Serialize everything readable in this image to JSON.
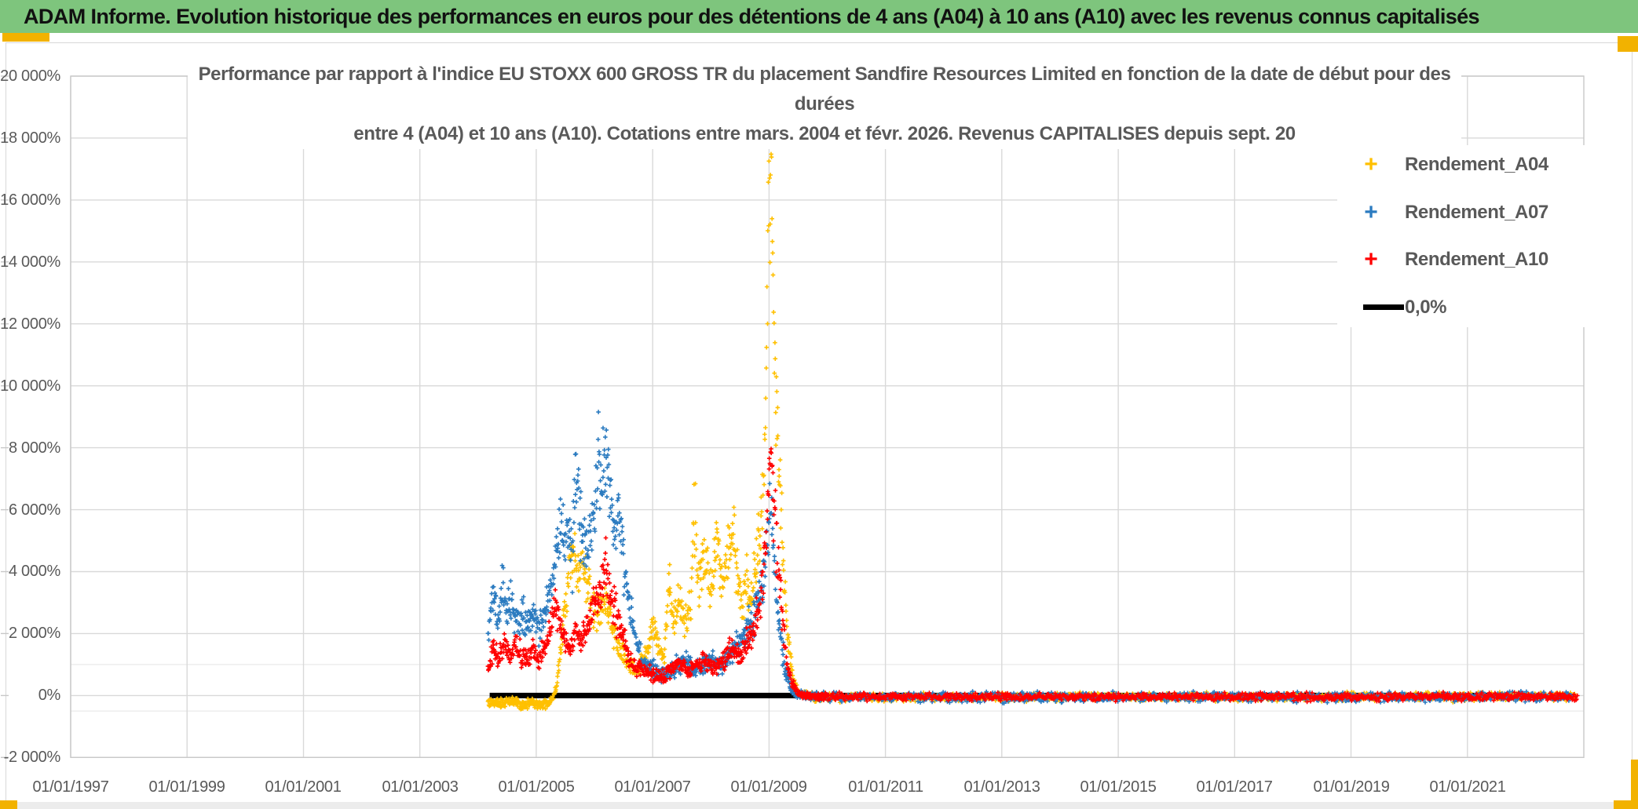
{
  "header": {
    "title": "ADAM Informe. Evolution historique des performances en euros pour des détentions de 4 ans (A04) à 10 ans (A10) avec les revenus connus capitalisés"
  },
  "colors": {
    "header_green": "#7EC57D",
    "accent_orange": "#F2B200",
    "grid": "#D9D9D9",
    "grid_faint": "#E4E4E4",
    "plot_border": "#C9C9C9",
    "axis_text": "#595959",
    "series_a04": "#FFC000",
    "series_a07": "#2B7BC0",
    "series_a10": "#FF0000",
    "zero_line": "#000000"
  },
  "chart_data": {
    "type": "scatter",
    "title_lines": [
      "Performance par rapport à l'indice EU STOXX 600 GROSS TR  du placement Sandfire Resources Limited en fonction de la date de début pour des",
      "durées",
      "entre 4 (A04) et 10 ans (A10). Cotations entre mars. 2004 et févr. 2026. Revenus CAPITALISES depuis sept. 20"
    ],
    "x_axis": {
      "range_years": [
        1997,
        2023
      ],
      "ticks": [
        {
          "label": "01/01/1997",
          "year": 1997
        },
        {
          "label": "01/01/1999",
          "year": 1999
        },
        {
          "label": "01/01/2001",
          "year": 2001
        },
        {
          "label": "01/01/2003",
          "year": 2003
        },
        {
          "label": "01/01/2005",
          "year": 2005
        },
        {
          "label": "01/01/2007",
          "year": 2007
        },
        {
          "label": "01/01/2009",
          "year": 2009
        },
        {
          "label": "01/01/2011",
          "year": 2011
        },
        {
          "label": "01/01/2013",
          "year": 2013
        },
        {
          "label": "01/01/2015",
          "year": 2015
        },
        {
          "label": "01/01/2017",
          "year": 2017
        },
        {
          "label": "01/01/2019",
          "year": 2019
        },
        {
          "label": "01/01/2021",
          "year": 2021
        }
      ]
    },
    "y_axis": {
      "range": [
        -2000,
        20000
      ],
      "ticks": [
        {
          "label": "20 000%",
          "value": 20000
        },
        {
          "label": "18 000%",
          "value": 18000
        },
        {
          "label": "16 000%",
          "value": 16000
        },
        {
          "label": "14 000%",
          "value": 14000
        },
        {
          "label": "12 000%",
          "value": 12000
        },
        {
          "label": "10 000%",
          "value": 10000
        },
        {
          "label": "8 000%",
          "value": 8000
        },
        {
          "label": "6 000%",
          "value": 6000
        },
        {
          "label": "4 000%",
          "value": 4000
        },
        {
          "label": "2 000%",
          "value": 2000
        },
        {
          "label": "0%",
          "value": 0
        },
        {
          "label": "-2 000%",
          "value": -2000
        }
      ],
      "extra_gridline_values": [
        1000,
        -500
      ]
    },
    "legend": [
      {
        "label": "Rendement_A04",
        "color": "#FFC000",
        "marker": "plus"
      },
      {
        "label": "Rendement_A07",
        "color": "#2B7BC0",
        "marker": "plus"
      },
      {
        "label": "Rendement_A10",
        "color": "#FF0000",
        "marker": "plus"
      },
      {
        "label": "0,0%",
        "color": "#000000",
        "marker": "line"
      }
    ],
    "zero_line": {
      "label": "0,0%",
      "value": 0,
      "start_year": 2004.2,
      "end_year": 2022.35,
      "color": "#000000"
    },
    "series": [
      {
        "name": "Rendement_A04",
        "color": "#FFC000",
        "seed": 101,
        "noise_base": 60,
        "noise_factor": 0.085,
        "profile": [
          [
            2004.17,
            -180
          ],
          [
            2004.4,
            -260
          ],
          [
            2004.6,
            -180
          ],
          [
            2004.75,
            -300
          ],
          [
            2004.95,
            -220
          ],
          [
            2005.15,
            -280
          ],
          [
            2005.28,
            -150
          ],
          [
            2005.35,
            300
          ],
          [
            2005.42,
            1500
          ],
          [
            2005.5,
            2800
          ],
          [
            2005.58,
            4200
          ],
          [
            2005.63,
            4800
          ],
          [
            2005.7,
            3900
          ],
          [
            2005.78,
            4500
          ],
          [
            2005.85,
            3600
          ],
          [
            2005.95,
            3100
          ],
          [
            2006.05,
            2500
          ],
          [
            2006.15,
            3200
          ],
          [
            2006.3,
            2100
          ],
          [
            2006.45,
            1500
          ],
          [
            2006.6,
            1000
          ],
          [
            2006.75,
            800
          ],
          [
            2006.9,
            1400
          ],
          [
            2007.0,
            2300
          ],
          [
            2007.1,
            1500
          ],
          [
            2007.2,
            1100
          ],
          [
            2007.28,
            3900
          ],
          [
            2007.35,
            2400
          ],
          [
            2007.45,
            3200
          ],
          [
            2007.55,
            2300
          ],
          [
            2007.65,
            2900
          ],
          [
            2007.72,
            5900
          ],
          [
            2007.8,
            3400
          ],
          [
            2007.9,
            4500
          ],
          [
            2008.0,
            3200
          ],
          [
            2008.1,
            5200
          ],
          [
            2008.18,
            3600
          ],
          [
            2008.28,
            4300
          ],
          [
            2008.38,
            5700
          ],
          [
            2008.45,
            4100
          ],
          [
            2008.55,
            2900
          ],
          [
            2008.62,
            3800
          ],
          [
            2008.7,
            3100
          ],
          [
            2008.78,
            4400
          ],
          [
            2008.85,
            5200
          ],
          [
            2008.92,
            7800
          ],
          [
            2008.97,
            12500
          ],
          [
            2009.01,
            17350
          ],
          [
            2009.04,
            15000
          ],
          [
            2009.08,
            12000
          ],
          [
            2009.12,
            9500
          ],
          [
            2009.16,
            7800
          ],
          [
            2009.2,
            6300
          ],
          [
            2009.25,
            4200
          ],
          [
            2009.3,
            2400
          ],
          [
            2009.38,
            900
          ],
          [
            2009.45,
            250
          ],
          [
            2009.55,
            20
          ],
          [
            2009.8,
            -60
          ],
          [
            2010.5,
            -40
          ],
          [
            2011,
            -60
          ],
          [
            2012,
            -50
          ],
          [
            2013,
            -60
          ],
          [
            2014,
            -40
          ],
          [
            2015,
            -55
          ],
          [
            2016,
            -45
          ],
          [
            2017,
            -60
          ],
          [
            2018,
            -50
          ],
          [
            2019,
            -40
          ],
          [
            2020,
            -55
          ],
          [
            2021,
            -35
          ],
          [
            2021.8,
            -20
          ],
          [
            2022.6,
            -30
          ],
          [
            2022.85,
            -40
          ]
        ]
      },
      {
        "name": "Rendement_A07",
        "color": "#2B7BC0",
        "seed": 202,
        "noise_base": 70,
        "noise_factor": 0.085,
        "profile": [
          [
            2004.17,
            2100
          ],
          [
            2004.25,
            3100
          ],
          [
            2004.33,
            2500
          ],
          [
            2004.42,
            3300
          ],
          [
            2004.5,
            2700
          ],
          [
            2004.58,
            3000
          ],
          [
            2004.67,
            2400
          ],
          [
            2004.75,
            2700
          ],
          [
            2004.85,
            2200
          ],
          [
            2004.95,
            2600
          ],
          [
            2005.05,
            2100
          ],
          [
            2005.15,
            2700
          ],
          [
            2005.25,
            3600
          ],
          [
            2005.33,
            4600
          ],
          [
            2005.42,
            5500
          ],
          [
            2005.5,
            4700
          ],
          [
            2005.55,
            5600
          ],
          [
            2005.62,
            4500
          ],
          [
            2005.68,
            7400
          ],
          [
            2005.73,
            6300
          ],
          [
            2005.8,
            5100
          ],
          [
            2005.87,
            4400
          ],
          [
            2005.95,
            5400
          ],
          [
            2006.02,
            6400
          ],
          [
            2006.08,
            8200
          ],
          [
            2006.13,
            7000
          ],
          [
            2006.2,
            7700
          ],
          [
            2006.28,
            6200
          ],
          [
            2006.35,
            5300
          ],
          [
            2006.42,
            6000
          ],
          [
            2006.5,
            4600
          ],
          [
            2006.58,
            3300
          ],
          [
            2006.68,
            2000
          ],
          [
            2006.8,
            1200
          ],
          [
            2006.95,
            950
          ],
          [
            2007.1,
            750
          ],
          [
            2007.25,
            650
          ],
          [
            2007.4,
            950
          ],
          [
            2007.55,
            1200
          ],
          [
            2007.7,
            850
          ],
          [
            2007.85,
            1000
          ],
          [
            2008.0,
            1250
          ],
          [
            2008.15,
            950
          ],
          [
            2008.3,
            1200
          ],
          [
            2008.45,
            1600
          ],
          [
            2008.6,
            2100
          ],
          [
            2008.75,
            2700
          ],
          [
            2008.88,
            3600
          ],
          [
            2008.97,
            4800
          ],
          [
            2009.03,
            6000
          ],
          [
            2009.08,
            4600
          ],
          [
            2009.13,
            3300
          ],
          [
            2009.2,
            1900
          ],
          [
            2009.28,
            800
          ],
          [
            2009.38,
            200
          ],
          [
            2009.5,
            30
          ],
          [
            2010,
            -45
          ],
          [
            2012,
            -55
          ],
          [
            2014,
            -60
          ],
          [
            2016,
            -50
          ],
          [
            2018,
            -55
          ],
          [
            2020,
            -50
          ],
          [
            2022,
            -40
          ],
          [
            2022.8,
            -45
          ]
        ]
      },
      {
        "name": "Rendement_A10",
        "color": "#FF0000",
        "seed": 303,
        "noise_base": 55,
        "noise_factor": 0.085,
        "profile": [
          [
            2004.17,
            800
          ],
          [
            2004.25,
            1500
          ],
          [
            2004.35,
            1200
          ],
          [
            2004.45,
            1600
          ],
          [
            2004.55,
            1300
          ],
          [
            2004.65,
            1700
          ],
          [
            2004.75,
            1300
          ],
          [
            2004.85,
            1100
          ],
          [
            2004.95,
            1400
          ],
          [
            2005.05,
            1100
          ],
          [
            2005.15,
            1600
          ],
          [
            2005.25,
            2200
          ],
          [
            2005.33,
            3100
          ],
          [
            2005.4,
            2400
          ],
          [
            2005.48,
            1800
          ],
          [
            2005.58,
            1500
          ],
          [
            2005.68,
            2100
          ],
          [
            2005.78,
            1700
          ],
          [
            2005.88,
            2300
          ],
          [
            2005.98,
            2800
          ],
          [
            2006.08,
            3300
          ],
          [
            2006.18,
            4200
          ],
          [
            2006.28,
            3400
          ],
          [
            2006.38,
            2600
          ],
          [
            2006.48,
            1900
          ],
          [
            2006.58,
            1300
          ],
          [
            2006.7,
            1000
          ],
          [
            2006.85,
            800
          ],
          [
            2007.0,
            650
          ],
          [
            2007.15,
            550
          ],
          [
            2007.3,
            850
          ],
          [
            2007.45,
            1100
          ],
          [
            2007.6,
            800
          ],
          [
            2007.75,
            950
          ],
          [
            2007.9,
            1150
          ],
          [
            2008.05,
            900
          ],
          [
            2008.2,
            1100
          ],
          [
            2008.35,
            1500
          ],
          [
            2008.5,
            1250
          ],
          [
            2008.62,
            1700
          ],
          [
            2008.75,
            2200
          ],
          [
            2008.85,
            3000
          ],
          [
            2008.95,
            4800
          ],
          [
            2009.0,
            6500
          ],
          [
            2009.04,
            7500
          ],
          [
            2009.08,
            6300
          ],
          [
            2009.12,
            5200
          ],
          [
            2009.17,
            4000
          ],
          [
            2009.22,
            2600
          ],
          [
            2009.3,
            1100
          ],
          [
            2009.4,
            350
          ],
          [
            2009.5,
            60
          ],
          [
            2009.7,
            -20
          ],
          [
            2010,
            -40
          ],
          [
            2012,
            -35
          ],
          [
            2014,
            -50
          ],
          [
            2016,
            -40
          ],
          [
            2018,
            -45
          ],
          [
            2020,
            -40
          ],
          [
            2022,
            -30
          ],
          [
            2022.9,
            -35
          ]
        ]
      }
    ]
  }
}
